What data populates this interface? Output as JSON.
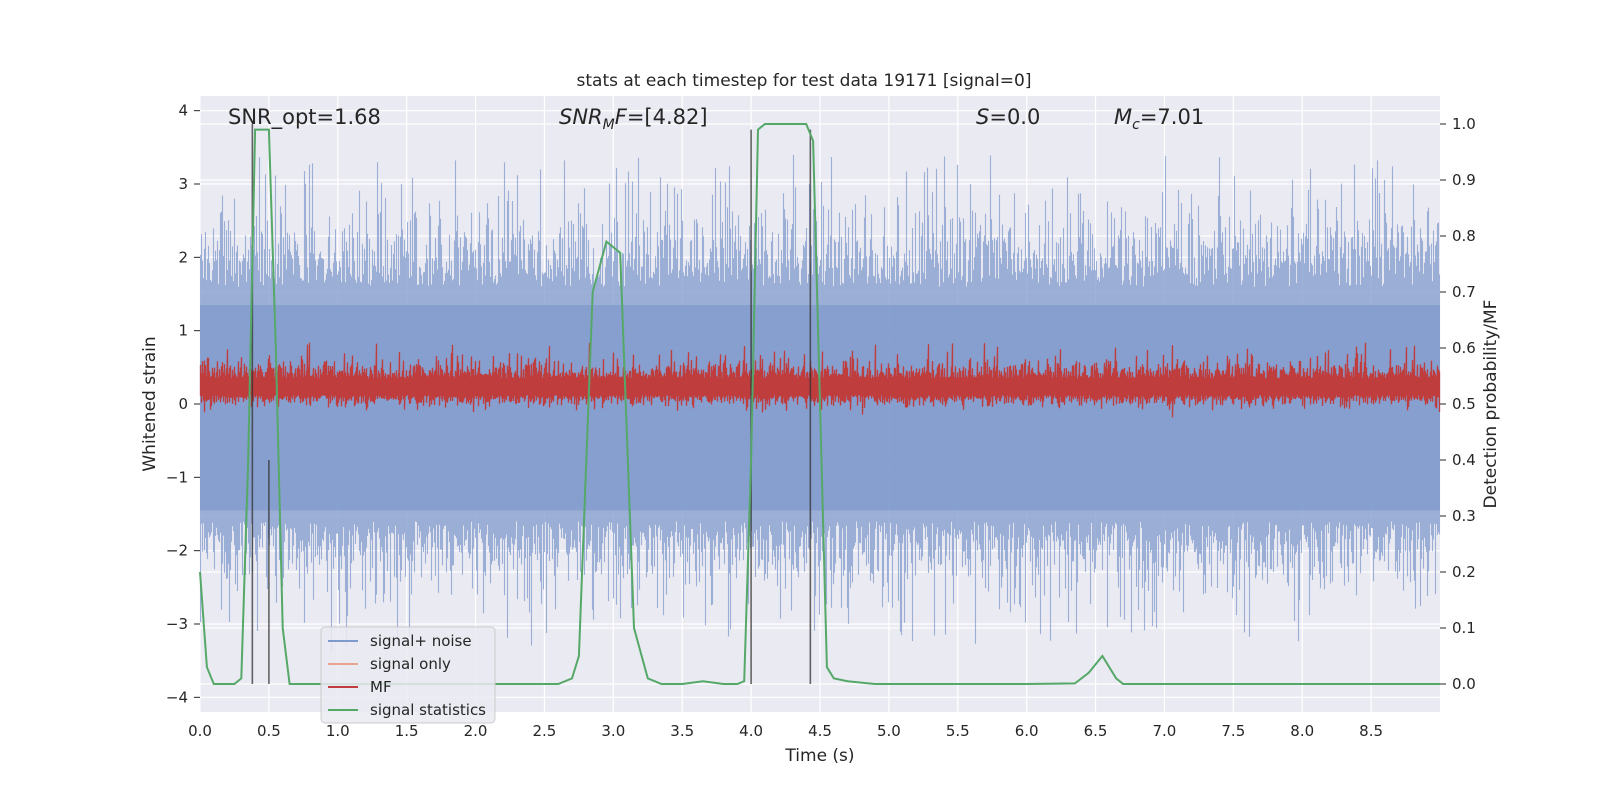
{
  "chart_data": {
    "type": "line",
    "title": "stats at each timestep for test data 19171 [signal=0]",
    "xlabel": "Time (s)",
    "ylabel_left": "Whitened strain",
    "ylabel_right": "Detection probability/MF",
    "xlim": [
      0,
      9.0
    ],
    "ylim_left": [
      -4.2,
      4.2
    ],
    "ylim_right": [
      -0.05,
      1.05
    ],
    "x_ticks": [
      "0.0",
      "0.5",
      "1.0",
      "1.5",
      "2.0",
      "2.5",
      "3.0",
      "3.5",
      "4.0",
      "4.5",
      "5.0",
      "5.5",
      "6.0",
      "6.5",
      "7.0",
      "7.5",
      "8.0",
      "8.5"
    ],
    "y_ticks_left": [
      "−4",
      "−3",
      "−2",
      "−1",
      "0",
      "1",
      "2",
      "3",
      "4"
    ],
    "y_ticks_right": [
      "0.0",
      "0.1",
      "0.2",
      "0.3",
      "0.4",
      "0.5",
      "0.6",
      "0.7",
      "0.8",
      "0.9",
      "1.0"
    ],
    "grid": true,
    "legend_location": "lower-left",
    "annotations": {
      "snr_opt": "SNR_opt=1.68",
      "snr_mf_sym": "SNR",
      "snr_mf_sub": "M",
      "snr_mf_rest": "F=[4.82]",
      "s_sym": "S",
      "s_rest": "=0.0",
      "mc_sym": "M",
      "mc_sub": "c",
      "mc_rest": "=7.01"
    },
    "series": [
      {
        "name": "signal+ noise",
        "color": "#7f9acc",
        "axis": "left",
        "style": "noise band approx. -2.5 to 2.8, peaks near ±3.5"
      },
      {
        "name": "signal only",
        "color": "#e8a58a",
        "axis": "left",
        "values": []
      },
      {
        "name": "MF",
        "color": "#c03d3e",
        "axis": "left",
        "style": "band approx. 0.0 to 0.6"
      },
      {
        "name": "signal statistics",
        "color": "#55a868",
        "axis": "right",
        "x": [
          0.0,
          0.05,
          0.1,
          0.15,
          0.2,
          0.25,
          0.3,
          0.35,
          0.4,
          0.45,
          0.5,
          0.55,
          0.6,
          0.65,
          0.7,
          1.0,
          2.0,
          2.5,
          2.6,
          2.7,
          2.75,
          2.85,
          2.95,
          3.05,
          3.15,
          3.25,
          3.35,
          3.5,
          3.65,
          3.8,
          3.9,
          3.95,
          4.0,
          4.05,
          4.1,
          4.2,
          4.3,
          4.4,
          4.45,
          4.5,
          4.55,
          4.6,
          4.7,
          4.9,
          6.0,
          6.35,
          6.45,
          6.55,
          6.65,
          6.7,
          6.8,
          9.0
        ],
        "values": [
          0.2,
          0.03,
          0.0,
          0.0,
          0.0,
          0.0,
          0.01,
          0.4,
          0.99,
          0.99,
          0.99,
          0.6,
          0.1,
          0.0,
          0.0,
          0.0,
          0.0,
          0.0,
          0.0,
          0.01,
          0.05,
          0.7,
          0.79,
          0.77,
          0.1,
          0.01,
          0.0,
          0.0,
          0.005,
          0.0,
          0.0,
          0.005,
          0.4,
          0.99,
          1.0,
          1.0,
          1.0,
          1.0,
          0.97,
          0.5,
          0.03,
          0.01,
          0.005,
          0.0,
          0.0,
          0.001,
          0.02,
          0.05,
          0.01,
          0.0,
          0.0,
          0.0
        ]
      }
    ],
    "vertical_markers": [
      {
        "x": 0.38,
        "y_top": 1.0,
        "y_bottom": 0.0
      },
      {
        "x": 0.5,
        "y_top": 0.4,
        "y_bottom": 0.0
      },
      {
        "x": 4.0,
        "y_top": 0.99,
        "y_bottom": 0.0
      },
      {
        "x": 4.43,
        "y_top": 0.99,
        "y_bottom": 0.0
      }
    ],
    "legend": [
      {
        "label": "signal+ noise",
        "color": "#7f9acc"
      },
      {
        "label": "signal only",
        "color": "#e8a58a"
      },
      {
        "label": "MF",
        "color": "#c03d3e"
      },
      {
        "label": "signal statistics",
        "color": "#55a868"
      }
    ]
  }
}
